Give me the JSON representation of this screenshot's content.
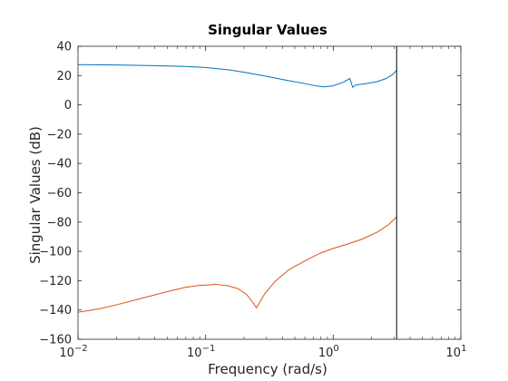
{
  "chart_data": {
    "type": "line",
    "title": "Singular Values",
    "xlabel": "Frequency (rad/s)",
    "ylabel": "Singular Values (dB)",
    "xscale": "log",
    "xlim": [
      0.01,
      10
    ],
    "ylim": [
      -160,
      40
    ],
    "grid": false,
    "legend": "none",
    "x_ticks": [
      {
        "value": 0.01,
        "base": "10",
        "exp": "-2"
      },
      {
        "value": 0.1,
        "base": "10",
        "exp": "-1"
      },
      {
        "value": 1,
        "base": "10",
        "exp": "0"
      },
      {
        "value": 10,
        "base": "10",
        "exp": "1"
      }
    ],
    "y_ticks": [
      40,
      20,
      0,
      -20,
      -40,
      -60,
      -80,
      -100,
      -120,
      -140,
      -160
    ],
    "vertical_line": {
      "x": 3.14,
      "color": "#000000"
    },
    "series": [
      {
        "color": "#0072bd",
        "points": [
          [
            0.01,
            27.5
          ],
          [
            0.02,
            27.2
          ],
          [
            0.04,
            26.8
          ],
          [
            0.07,
            26.2
          ],
          [
            0.1,
            25.5
          ],
          [
            0.15,
            24.0
          ],
          [
            0.2,
            22.3
          ],
          [
            0.3,
            19.5
          ],
          [
            0.45,
            16.5
          ],
          [
            0.6,
            14.5
          ],
          [
            0.75,
            12.8
          ],
          [
            0.85,
            12.3
          ],
          [
            1.0,
            13.0
          ],
          [
            1.2,
            15.5
          ],
          [
            1.35,
            18.0
          ],
          [
            1.42,
            12.0
          ],
          [
            1.5,
            13.5
          ],
          [
            1.8,
            14.5
          ],
          [
            2.2,
            15.8
          ],
          [
            2.6,
            18.0
          ],
          [
            2.9,
            20.5
          ],
          [
            3.14,
            23.5
          ]
        ]
      },
      {
        "color": "#d95319",
        "points": [
          [
            0.01,
            -141.5
          ],
          [
            0.012,
            -140.5
          ],
          [
            0.015,
            -139.0
          ],
          [
            0.02,
            -136.5
          ],
          [
            0.03,
            -132.5
          ],
          [
            0.05,
            -127.5
          ],
          [
            0.07,
            -124.5
          ],
          [
            0.09,
            -123.2
          ],
          [
            0.12,
            -122.5
          ],
          [
            0.15,
            -123.5
          ],
          [
            0.18,
            -125.5
          ],
          [
            0.21,
            -129.5
          ],
          [
            0.235,
            -135.0
          ],
          [
            0.25,
            -138.5
          ],
          [
            0.265,
            -135.0
          ],
          [
            0.29,
            -129.0
          ],
          [
            0.35,
            -120.5
          ],
          [
            0.45,
            -112.5
          ],
          [
            0.6,
            -106.5
          ],
          [
            0.8,
            -101.0
          ],
          [
            1.0,
            -98.0
          ],
          [
            1.3,
            -95.0
          ],
          [
            1.7,
            -91.5
          ],
          [
            2.2,
            -87.0
          ],
          [
            2.7,
            -82.0
          ],
          [
            3.14,
            -76.5
          ]
        ]
      }
    ]
  }
}
